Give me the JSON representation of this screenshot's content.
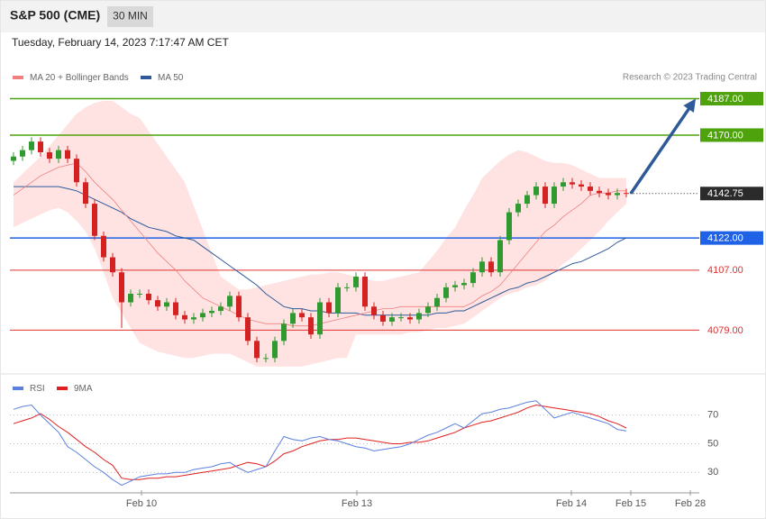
{
  "header": {
    "title": "S&P 500 (CME)",
    "timeframe": "30 MIN",
    "timestamp": "Tuesday, February 14, 2023 7:17:47 AM CET"
  },
  "chart_data": [
    {
      "type": "candlestick",
      "credit": "Research © 2023 Trading Central",
      "up_color": "#2f9a2f",
      "down_color": "#d42222",
      "xlim": [
        -0.4,
        76.1
      ],
      "ylim": [
        4059,
        4195
      ],
      "xticks": [
        {
          "value": 14.2,
          "label": "Feb 10"
        },
        {
          "value": 38.1,
          "label": "Feb 13"
        },
        {
          "value": 61.9,
          "label": "Feb 14"
        },
        {
          "value": 68.5,
          "label": "Feb 15"
        },
        {
          "value": 75.1,
          "label": "Feb 28"
        }
      ],
      "open": [
        4158,
        4160,
        4163,
        4167,
        4162,
        4159,
        4163,
        4159,
        4148,
        4138,
        4123,
        4113,
        4106,
        4092,
        4096,
        4096,
        4093,
        4090,
        4092,
        4086,
        4084,
        4085,
        4087,
        4088,
        4090,
        4095,
        4085,
        4074,
        4066,
        4066,
        4074,
        4082,
        4087,
        4085,
        4077,
        4092,
        4087,
        4099,
        4099,
        4104,
        4090,
        4086,
        4083,
        4085,
        4085,
        4084,
        4087,
        4090,
        4094,
        4099,
        4100,
        4101,
        4106,
        4111,
        4106,
        4121,
        4134,
        4138,
        4142,
        4146,
        4138,
        4146,
        4148,
        4147,
        4146,
        4144,
        4143,
        4142,
        4143
      ],
      "high": [
        4162,
        4165,
        4169,
        4169,
        4164,
        4165,
        4165,
        4161,
        4150,
        4140,
        4125,
        4115,
        4108,
        4098,
        4098,
        4098,
        4095,
        4094,
        4094,
        4088,
        4087,
        4089,
        4090,
        4092,
        4097,
        4097,
        4087,
        4076,
        4068,
        4076,
        4084,
        4089,
        4089,
        4087,
        4094,
        4094,
        4101,
        4101,
        4106,
        4106,
        4092,
        4088,
        4087,
        4087,
        4087,
        4089,
        4092,
        4096,
        4101,
        4102,
        4103,
        4108,
        4113,
        4113,
        4123,
        4136,
        4140,
        4144,
        4148,
        4148,
        4148,
        4150,
        4150,
        4149,
        4148,
        4146,
        4145,
        4145,
        4145
      ],
      "low": [
        4156,
        4158,
        4161,
        4160,
        4157,
        4157,
        4157,
        4146,
        4136,
        4121,
        4111,
        4104,
        4080,
        4090,
        4094,
        4091,
        4088,
        4088,
        4084,
        4082,
        4082,
        4083,
        4085,
        4086,
        4088,
        4083,
        4072,
        4064,
        4064,
        4064,
        4072,
        4080,
        4083,
        4075,
        4075,
        4085,
        4085,
        4097,
        4097,
        4088,
        4084,
        4081,
        4081,
        4083,
        4082,
        4082,
        4085,
        4088,
        4092,
        4097,
        4098,
        4099,
        4104,
        4104,
        4104,
        4119,
        4132,
        4136,
        4140,
        4136,
        4136,
        4144,
        4145,
        4144,
        4142,
        4141,
        4140,
        4140,
        4141
      ],
      "close": [
        4160,
        4163,
        4167,
        4162,
        4159,
        4163,
        4159,
        4148,
        4138,
        4123,
        4113,
        4106,
        4092,
        4096,
        4096,
        4093,
        4090,
        4092,
        4086,
        4084,
        4085,
        4087,
        4088,
        4090,
        4095,
        4085,
        4074,
        4066,
        4066,
        4074,
        4082,
        4087,
        4085,
        4077,
        4092,
        4087,
        4099,
        4099,
        4104,
        4090,
        4086,
        4083,
        4085,
        4085,
        4084,
        4087,
        4090,
        4094,
        4099,
        4100,
        4101,
        4106,
        4111,
        4106,
        4121,
        4134,
        4138,
        4142,
        4146,
        4138,
        4146,
        4148,
        4147,
        4146,
        4144,
        4143,
        4142,
        4143,
        4142.75
      ],
      "series": [
        {
          "name": "MA 20 + Bollinger Bands",
          "color": "#f08080",
          "values": [
            4142,
            4145,
            4148,
            4151,
            4153,
            4155,
            4156,
            4157,
            4153,
            4148,
            4144,
            4140,
            4135,
            4130,
            4125,
            4120,
            4115,
            4111,
            4107,
            4102,
            4098,
            4094,
            4092,
            4090,
            4088,
            4086,
            4084,
            4083,
            4082,
            4082,
            4082,
            4081,
            4081,
            4081,
            4082,
            4083,
            4084,
            4085,
            4086,
            4087,
            4088,
            4089,
            4089,
            4090,
            4090,
            4090,
            4090,
            4090,
            4090,
            4090,
            4090,
            4092,
            4095,
            4097,
            4100,
            4105,
            4110,
            4115,
            4120,
            4125,
            4128,
            4132,
            4135,
            4138,
            4142,
            4143,
            4143,
            4144,
            4144
          ],
          "upper": [
            4148,
            4152,
            4156,
            4160,
            4165,
            4170,
            4175,
            4180,
            4183,
            4185,
            4186,
            4186,
            4183,
            4180,
            4178,
            4172,
            4166,
            4160,
            4154,
            4148,
            4137,
            4126,
            4115,
            4104,
            4101,
            4098,
            4098,
            4099,
            4100,
            4101,
            4102,
            4103,
            4104,
            4105,
            4105,
            4106,
            4106,
            4105,
            4104,
            4103,
            4102,
            4102,
            4103,
            4104,
            4105,
            4106,
            4111,
            4116,
            4122,
            4127,
            4135,
            4142,
            4150,
            4154,
            4158,
            4161,
            4163,
            4162,
            4160,
            4158,
            4157,
            4157,
            4156,
            4154,
            4152,
            4150,
            4150,
            4150,
            4150
          ],
          "lower": [
            4127,
            4129,
            4131,
            4133,
            4135,
            4136,
            4134,
            4130,
            4125,
            4117,
            4106,
            4094,
            4087,
            4080,
            4073,
            4071,
            4069,
            4068,
            4067,
            4066,
            4066,
            4067,
            4068,
            4068,
            4068,
            4066,
            4064,
            4062,
            4062,
            4062,
            4062,
            4062,
            4062,
            4063,
            4064,
            4065,
            4066,
            4066,
            4077,
            4077,
            4077,
            4077,
            4077,
            4077,
            4078,
            4078,
            4079,
            4080,
            4080,
            4081,
            4082,
            4085,
            4088,
            4091,
            4094,
            4096,
            4097,
            4099,
            4100,
            4102,
            4106,
            4110,
            4113,
            4117,
            4121,
            4125,
            4130,
            4134,
            4138
          ]
        },
        {
          "name": "MA 50",
          "color": "#2e5a9a",
          "values": [
            4146,
            4146,
            4146,
            4146,
            4146,
            4146,
            4145,
            4144,
            4142,
            4140,
            4138,
            4136,
            4134,
            4131,
            4129,
            4127,
            4126,
            4125,
            4123,
            4122,
            4121,
            4118,
            4115,
            4112,
            4109,
            4106,
            4103,
            4100,
            4096,
            4093,
            4090,
            4089,
            4089,
            4088,
            4088,
            4087,
            4087,
            4087,
            4087,
            4086,
            4086,
            4086,
            4086,
            4086,
            4086,
            4086,
            4086,
            4087,
            4087,
            4088,
            4088,
            4090,
            4092,
            4094,
            4096,
            4098,
            4099,
            4101,
            4102,
            4104,
            4106,
            4108,
            4110,
            4111,
            4113,
            4115,
            4117,
            4120,
            4122
          ]
        }
      ],
      "levels": [
        {
          "value": 4187,
          "label": "4187.00",
          "color": "#4ea20c",
          "box": true
        },
        {
          "value": 4170,
          "label": "4170.00",
          "color": "#4ea20c",
          "box": true
        },
        {
          "value": 4142.75,
          "color": "#2b2b2b",
          "box": true,
          "dotted": true
        },
        {
          "value": 4122,
          "label": "4122.00",
          "color": "#1f62e6",
          "box": true
        },
        {
          "value": 4107,
          "label": "4107.00",
          "color": "#e03030",
          "box": false
        },
        {
          "value": 4079,
          "label": "4079.00",
          "color": "#e03030",
          "box": false
        }
      ]
    },
    {
      "type": "line",
      "ylim": [
        17,
        83
      ],
      "yticks": [
        30,
        50,
        70
      ],
      "series": [
        {
          "name": "RSI",
          "color": "#5b80e0",
          "values": [
            74,
            76,
            77,
            70,
            64,
            58,
            48,
            44,
            39,
            34,
            30,
            25,
            21,
            24,
            27,
            28,
            29,
            29,
            30,
            30,
            32,
            33,
            34,
            36,
            37,
            33,
            30,
            32,
            34,
            45,
            55,
            53,
            52,
            54,
            55,
            53,
            52,
            50,
            48,
            47,
            45,
            46,
            47,
            48,
            50,
            53,
            56,
            58,
            61,
            64,
            61,
            66,
            71,
            72,
            74,
            75,
            77,
            79,
            80,
            74,
            68,
            70,
            72,
            70,
            68,
            66,
            64,
            60,
            59
          ]
        },
        {
          "name": "9MA",
          "color": "#e02020",
          "values": [
            64,
            66,
            68,
            71,
            67,
            62,
            58,
            53,
            48,
            44,
            39,
            35,
            26,
            25,
            25,
            26,
            26,
            27,
            27,
            28,
            29,
            30,
            31,
            32,
            33,
            35,
            37,
            36,
            34,
            38,
            43,
            45,
            48,
            50,
            52,
            53,
            53,
            54,
            54,
            53,
            52,
            51,
            50,
            50,
            51,
            51,
            52,
            54,
            56,
            58,
            61,
            63,
            65,
            66,
            68,
            70,
            72,
            75,
            77,
            76,
            75,
            74,
            73,
            72,
            71,
            69,
            66,
            64,
            61
          ]
        }
      ]
    }
  ]
}
